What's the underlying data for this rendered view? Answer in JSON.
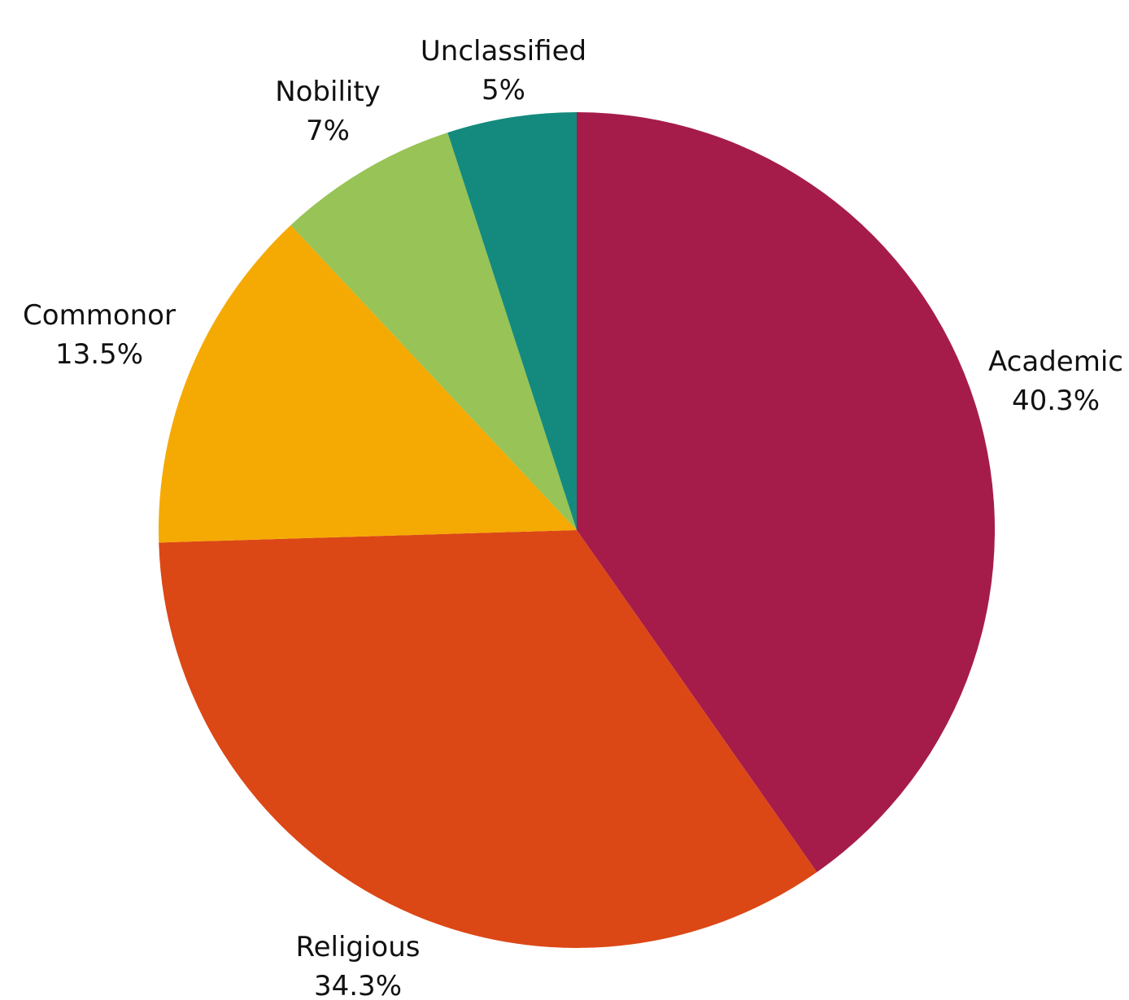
{
  "chart_data": {
    "type": "pie",
    "title": "",
    "start_angle_deg": 0,
    "direction": "clockwise",
    "slices": [
      {
        "label": "Academic",
        "value": 40.3,
        "display": "40.3%",
        "color": "#A51C4A"
      },
      {
        "label": "Religious",
        "value": 34.3,
        "display": "34.3%",
        "color": "#DC4716"
      },
      {
        "label": "Commonor",
        "value": 13.5,
        "display": "13.5%",
        "color": "#F4AA03"
      },
      {
        "label": "Nobility",
        "value": 7,
        "display": "7%",
        "color": "#98C356"
      },
      {
        "label": "Unclassified",
        "value": 5,
        "display": "5%",
        "color": "#138A7D"
      }
    ],
    "legend": "none",
    "label_placement": "outside"
  }
}
